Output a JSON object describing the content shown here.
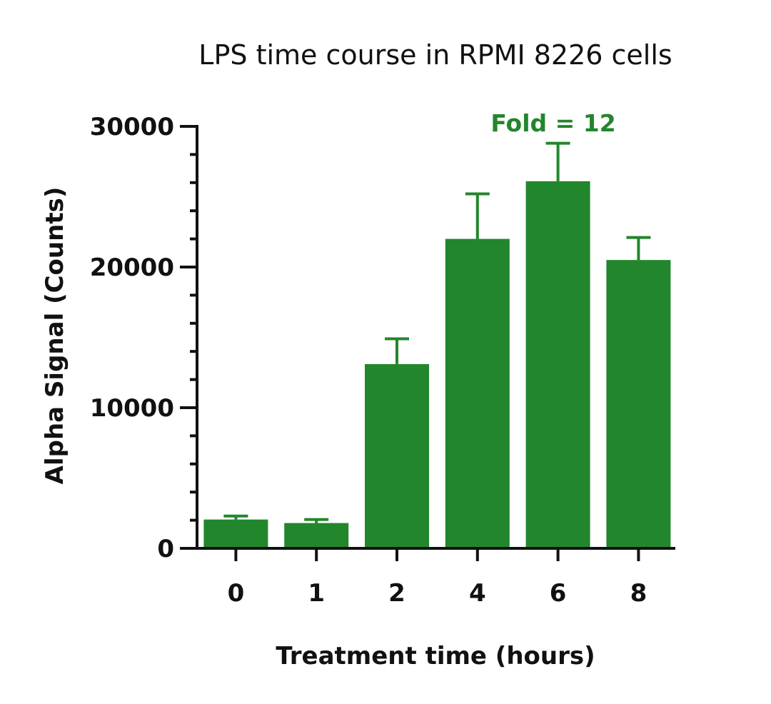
{
  "chart_data": {
    "type": "bar",
    "title": "LPS time course in RPMI 8226 cells",
    "xlabel": "Treatment time (hours)",
    "ylabel": "Alpha Signal (Counts)",
    "categories": [
      "0",
      "1",
      "2",
      "4",
      "6",
      "8"
    ],
    "values": [
      2050,
      1800,
      13100,
      22000,
      26100,
      20500
    ],
    "error_upper": [
      2300,
      2050,
      14900,
      25200,
      28800,
      22100
    ],
    "ylim": [
      0,
      30000
    ],
    "yticks": [
      0,
      10000,
      20000,
      30000
    ],
    "ytick_labels": [
      "0",
      "10000",
      "20000",
      "30000"
    ],
    "minor_tick_step": 2000,
    "annotation": "Fold = 12",
    "bar_color": "#22862c",
    "axis_color": "#111111",
    "grid": false
  }
}
